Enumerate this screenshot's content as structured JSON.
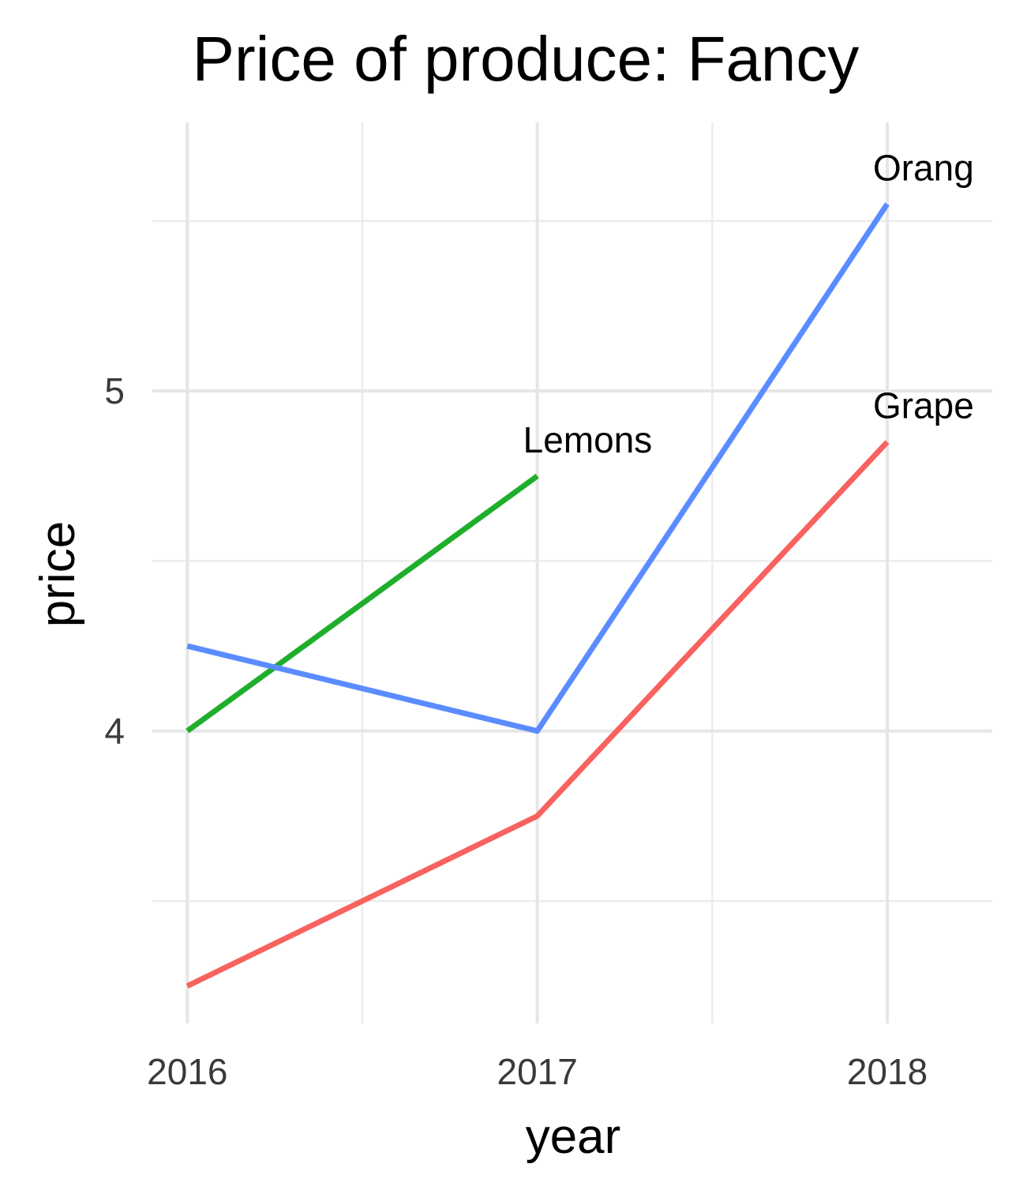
{
  "chart_data": {
    "type": "line",
    "title": "Price of produce: Fancy",
    "xlabel": "year",
    "ylabel": "price",
    "x": [
      2016,
      2017,
      2018
    ],
    "xticks": [
      2016,
      2017,
      2018
    ],
    "yticks": [
      4,
      5
    ],
    "xlim": [
      2015.9,
      2018.3
    ],
    "ylim": [
      3.14,
      5.79
    ],
    "grid": true,
    "legend": "none",
    "series": [
      {
        "name": "Grapes",
        "label": "Grape",
        "color": "#f8625f",
        "values": [
          3.25,
          3.75,
          4.85
        ]
      },
      {
        "name": "Lemons",
        "label": "Lemons",
        "color": "#1fae2c",
        "values": [
          4.0,
          4.75,
          null
        ]
      },
      {
        "name": "Oranges",
        "label": "Orang",
        "color": "#5b8cff",
        "values": [
          4.25,
          4.0,
          5.55
        ]
      }
    ]
  }
}
